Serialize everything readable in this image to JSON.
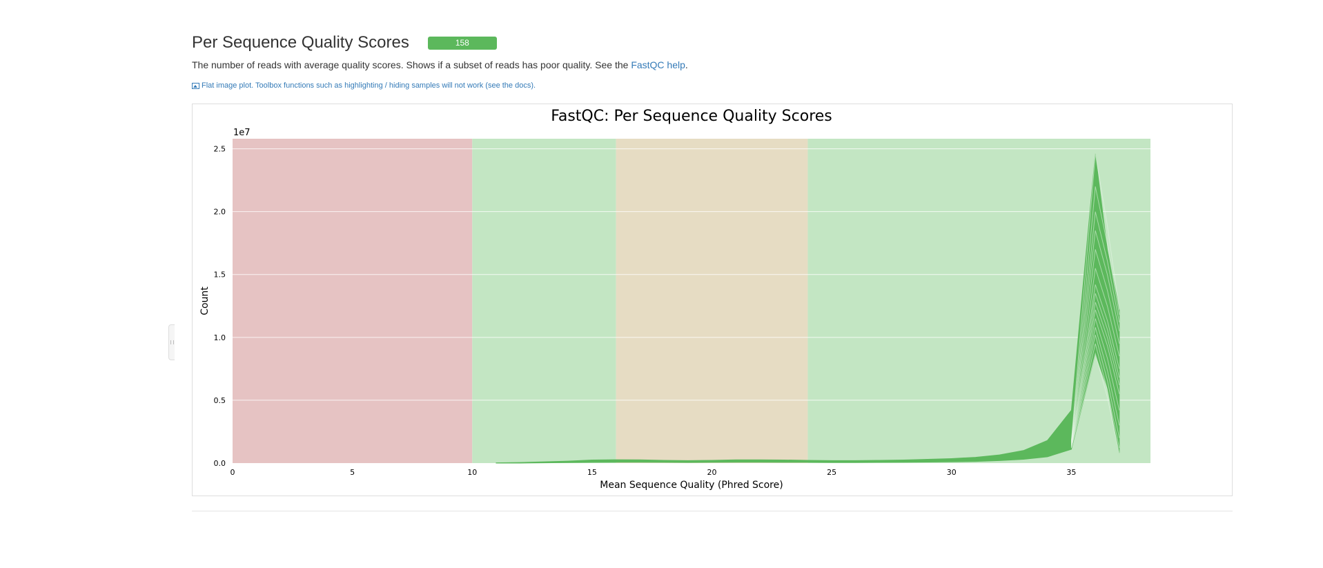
{
  "section": {
    "title": "Per Sequence Quality Scores",
    "badge": "158",
    "description": "The number of reads with average quality scores. Shows if a subset of reads has poor quality. See the ",
    "help_link": "FastQC help",
    "description_end": ".",
    "flat_note": "Flat image plot. Toolbox functions such as highlighting / hiding samples will not work (see the docs)."
  },
  "colors": {
    "badge": "#5cb85c",
    "line": "#5cb85c",
    "zone_fail": "#e6c3c3",
    "zone_pass": "#c3e6c3",
    "zone_warn": "#e6dcc3",
    "link": "#337ab7"
  },
  "chart_data": {
    "type": "line",
    "title": "FastQC: Per Sequence Quality Scores",
    "xlabel": "Mean Sequence Quality (Phred Score)",
    "ylabel": "Count",
    "y_offset_label": "1e7",
    "xlim": [
      0,
      38.3
    ],
    "ylim": [
      0,
      2.58
    ],
    "x_ticks": [
      "0",
      "5",
      "10",
      "15",
      "20",
      "25",
      "30",
      "35"
    ],
    "y_ticks": [
      "0.0",
      "0.5",
      "1.0",
      "1.5",
      "2.0",
      "2.5"
    ],
    "y_unit_multiplier": 10000000,
    "grid": true,
    "bands": [
      {
        "from": 0,
        "to": 10,
        "status": "fail"
      },
      {
        "from": 10,
        "to": 16,
        "status": "pass"
      },
      {
        "from": 16,
        "to": 24,
        "status": "warn"
      },
      {
        "from": 24,
        "to": 38.3,
        "status": "pass"
      }
    ],
    "x": [
      11,
      12,
      13,
      14,
      15,
      16,
      17,
      18,
      19,
      20,
      21,
      22,
      23,
      24,
      25,
      26,
      27,
      28,
      29,
      30,
      31,
      32,
      33,
      34,
      35,
      36,
      36.5,
      37
    ],
    "envelope_upper": [
      0.002,
      0.005,
      0.01,
      0.016,
      0.025,
      0.027,
      0.026,
      0.022,
      0.02,
      0.022,
      0.026,
      0.026,
      0.025,
      0.022,
      0.02,
      0.02,
      0.022,
      0.025,
      0.03,
      0.036,
      0.046,
      0.065,
      0.1,
      0.18,
      0.42,
      2.46,
      1.7,
      1.22
    ],
    "envelope_lower": [
      0,
      0,
      0.002,
      0.004,
      0.006,
      0.007,
      0.007,
      0.006,
      0.005,
      0.006,
      0.007,
      0.007,
      0.006,
      0.006,
      0.005,
      0.005,
      0.006,
      0.007,
      0.008,
      0.01,
      0.013,
      0.02,
      0.03,
      0.05,
      0.11,
      0.87,
      0.6,
      0.08
    ],
    "sample_peaks": [
      0.87,
      0.95,
      1.02,
      1.08,
      1.15,
      1.22,
      1.28,
      1.35,
      1.42,
      1.55,
      1.7,
      1.85,
      2.0,
      2.2,
      2.46
    ],
    "sample_ends": [
      0.08,
      0.12,
      0.2,
      0.3,
      0.42,
      0.55,
      0.62,
      0.68,
      0.75,
      0.85,
      0.95,
      1.05,
      1.12,
      1.18,
      1.22
    ]
  }
}
